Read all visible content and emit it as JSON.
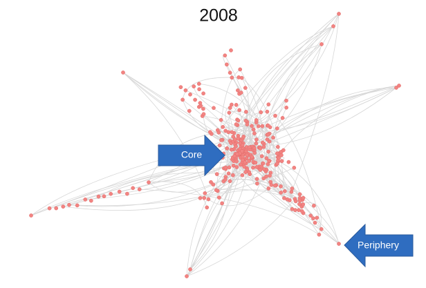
{
  "header": {
    "title": "2008"
  },
  "annotations": {
    "core": "Core",
    "periphery": "Periphery"
  }
}
